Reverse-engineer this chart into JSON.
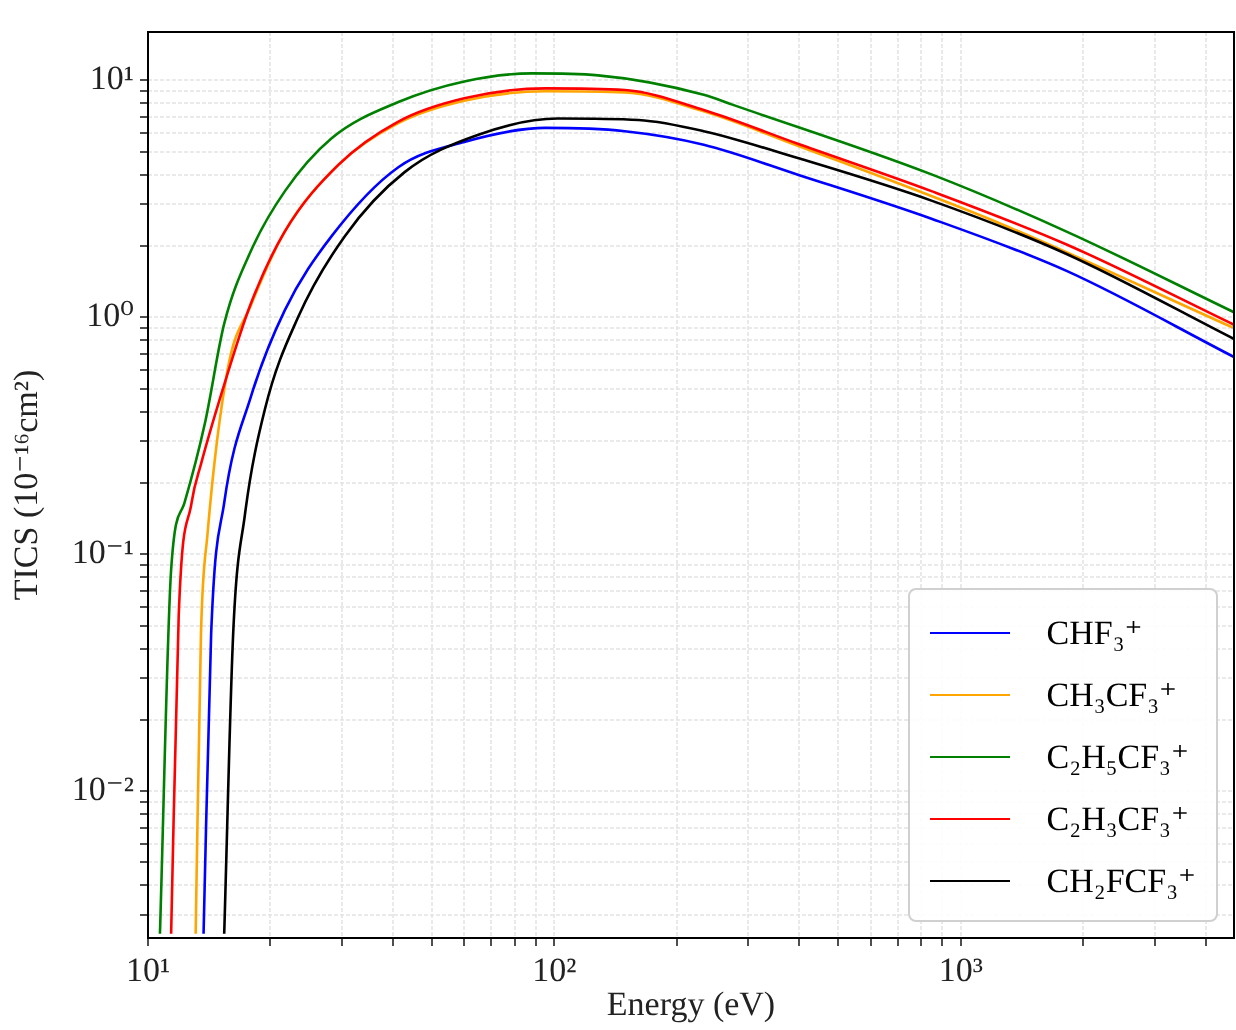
{
  "chart_data": {
    "type": "line",
    "xlabel": "Energy (eV)",
    "ylabel": "TICS (10⁻¹⁶cm²)",
    "log": "xy",
    "grid": true,
    "legend": "bottom right",
    "xlim": [
      10,
      4700
    ],
    "ylim": [
      0.0024,
      16
    ],
    "xticks": [
      {
        "value": 10,
        "label": "10¹"
      },
      {
        "value": 20,
        "label": null
      },
      {
        "value": 30,
        "label": null
      },
      {
        "value": 40,
        "label": null
      },
      {
        "value": 50,
        "label": null
      },
      {
        "value": 60,
        "label": null
      },
      {
        "value": 70,
        "label": null
      },
      {
        "value": 80,
        "label": null
      },
      {
        "value": 90,
        "label": null
      },
      {
        "value": 100,
        "label": "10²"
      },
      {
        "value": 200,
        "label": null
      },
      {
        "value": 300,
        "label": null
      },
      {
        "value": 400,
        "label": null
      },
      {
        "value": 500,
        "label": null
      },
      {
        "value": 600,
        "label": null
      },
      {
        "value": 700,
        "label": null
      },
      {
        "value": 800,
        "label": null
      },
      {
        "value": 900,
        "label": null
      },
      {
        "value": 1000,
        "label": "10³"
      },
      {
        "value": 2000,
        "label": null
      },
      {
        "value": 3000,
        "label": null
      },
      {
        "value": 4000,
        "label": null
      }
    ],
    "yticks": [
      {
        "value": 0.003,
        "label": null
      },
      {
        "value": 0.004,
        "label": null
      },
      {
        "value": 0.005,
        "label": null
      },
      {
        "value": 0.006,
        "label": null
      },
      {
        "value": 0.007,
        "label": null
      },
      {
        "value": 0.008,
        "label": null
      },
      {
        "value": 0.009,
        "label": null
      },
      {
        "value": 0.01,
        "label": "10⁻²"
      },
      {
        "value": 0.02,
        "label": null
      },
      {
        "value": 0.03,
        "label": null
      },
      {
        "value": 0.04,
        "label": null
      },
      {
        "value": 0.05,
        "label": null
      },
      {
        "value": 0.06,
        "label": null
      },
      {
        "value": 0.07,
        "label": null
      },
      {
        "value": 0.08,
        "label": null
      },
      {
        "value": 0.09,
        "label": null
      },
      {
        "value": 0.1,
        "label": "10⁻¹"
      },
      {
        "value": 0.2,
        "label": null
      },
      {
        "value": 0.3,
        "label": null
      },
      {
        "value": 0.4,
        "label": null
      },
      {
        "value": 0.5,
        "label": null
      },
      {
        "value": 0.6,
        "label": null
      },
      {
        "value": 0.7,
        "label": null
      },
      {
        "value": 0.8,
        "label": null
      },
      {
        "value": 0.9,
        "label": null
      },
      {
        "value": 1,
        "label": "10⁰"
      },
      {
        "value": 2,
        "label": null
      },
      {
        "value": 3,
        "label": null
      },
      {
        "value": 4,
        "label": null
      },
      {
        "value": 5,
        "label": null
      },
      {
        "value": 6,
        "label": null
      },
      {
        "value": 7,
        "label": null
      },
      {
        "value": 8,
        "label": null
      },
      {
        "value": 9,
        "label": null
      },
      {
        "value": 10,
        "label": "10¹"
      }
    ],
    "series": [
      {
        "name": "CHF₃⁺",
        "color": "#0000ff",
        "x": [
          13.7,
          14.3,
          15.4,
          17.9,
          21.7,
          28.3,
          41.3,
          60,
          95,
          149,
          233,
          397,
          850,
          1820,
          4700
        ],
        "values": [
          0.0025,
          0.046,
          0.165,
          0.46,
          1.07,
          2.2,
          4.3,
          5.5,
          6.3,
          6.1,
          5.35,
          4.0,
          2.6,
          1.57,
          0.68
        ]
      },
      {
        "name": "CH₃CF₃⁺",
        "color": "#ffa500",
        "x": [
          13.1,
          13.5,
          14.0,
          15.7,
          17.9,
          21.7,
          29.4,
          41.3,
          60,
          95,
          149,
          233,
          397,
          1240,
          4700
        ],
        "values": [
          0.0025,
          0.046,
          0.12,
          0.6,
          1.12,
          2.3,
          4.4,
          6.6,
          8.2,
          9.0,
          8.9,
          7.4,
          5.3,
          2.5,
          0.9
        ]
      },
      {
        "name": "C₂H₅CF₃⁺",
        "color": "#008000",
        "x": [
          10.7,
          11.4,
          12.3,
          13.8,
          15.4,
          17.9,
          21.7,
          28.3,
          41.3,
          60,
          88,
          128,
          233,
          274,
          850,
          1820,
          4700
        ],
        "values": [
          0.0025,
          0.086,
          0.165,
          0.356,
          0.94,
          1.9,
          3.4,
          5.7,
          8.1,
          9.9,
          10.7,
          10.5,
          8.7,
          7.9,
          4.0,
          2.3,
          1.05
        ]
      },
      {
        "name": "C₂H₃CF₃⁺",
        "color": "#ff0000",
        "x": [
          11.4,
          11.9,
          12.8,
          13.5,
          15.4,
          17.9,
          21.7,
          29.4,
          41.3,
          60,
          95,
          149,
          233,
          397,
          850,
          1820,
          4700
        ],
        "values": [
          0.0025,
          0.055,
          0.165,
          0.24,
          0.52,
          1.14,
          2.3,
          4.4,
          6.7,
          8.4,
          9.25,
          9.1,
          7.5,
          5.4,
          3.4,
          2.03,
          0.93
        ]
      },
      {
        "name": "CH₂FCF₃⁺",
        "color": "#000000",
        "x": [
          15.4,
          16.2,
          17.3,
          19.4,
          23.4,
          30.5,
          42.8,
          65,
          102,
          161,
          233,
          397,
          850,
          1820,
          4700
        ],
        "values": [
          0.0025,
          0.046,
          0.145,
          0.41,
          1.0,
          2.2,
          4.1,
          5.9,
          6.9,
          6.8,
          6.1,
          4.7,
          3.1,
          1.85,
          0.81
        ]
      }
    ]
  }
}
